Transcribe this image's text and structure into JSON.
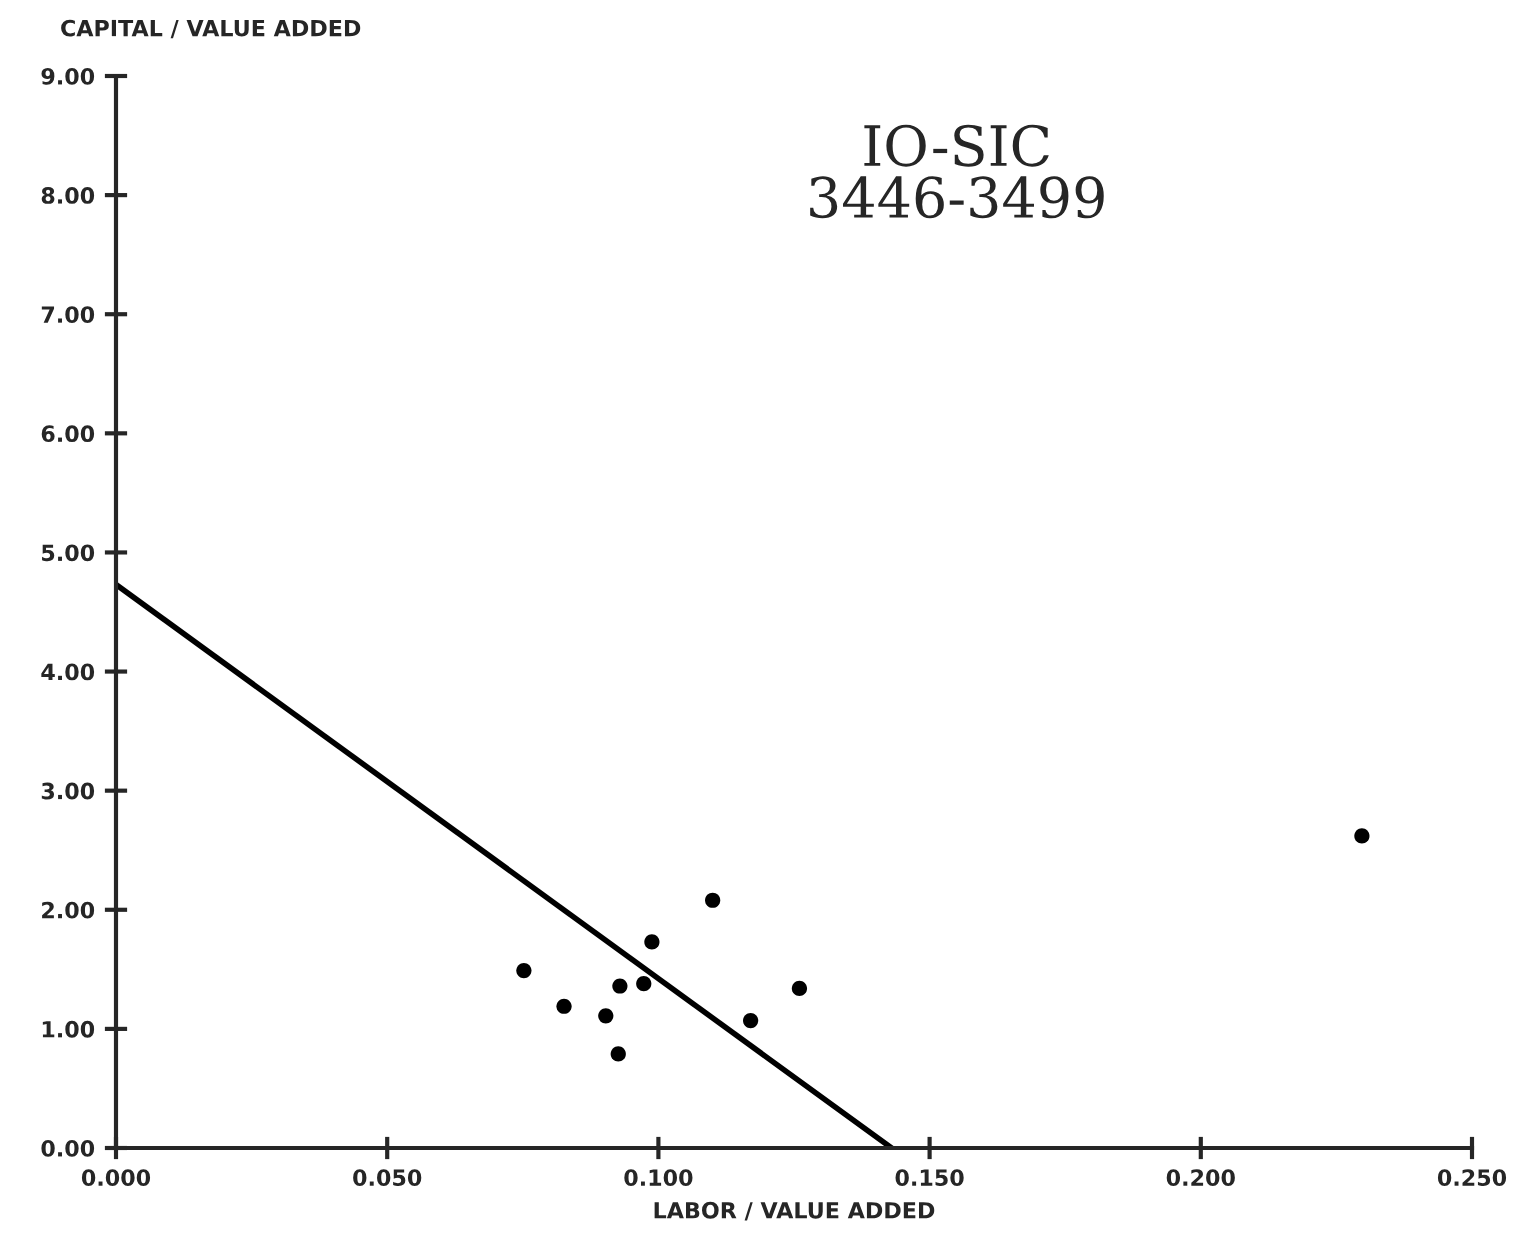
{
  "chart_data": {
    "type": "scatter",
    "title": "IO-SIC\n3446-3499",
    "xlabel": "LABOR / VALUE ADDED",
    "ylabel": "CAPITAL / VALUE ADDED",
    "series": [
      {
        "color": "#000000",
        "marker": "circle",
        "x": [
          0.11,
          0.0988,
          0.0752,
          0.0929,
          0.0973,
          0.0826,
          0.0903,
          0.126,
          0.117,
          0.0926,
          0.2297
        ],
        "values": [
          2.08,
          1.73,
          1.49,
          1.36,
          1.38,
          1.19,
          1.11,
          1.34,
          1.07,
          0.79,
          2.62
        ]
      },
      {
        "type": "line",
        "color": "#000000",
        "marker": "none",
        "line_style": "solid",
        "x": [
          0,
          0.143
        ],
        "values": [
          4.73,
          0
        ]
      }
    ],
    "xlim": [
      0,
      0.25
    ],
    "ylim": [
      0,
      9
    ],
    "xticks": [
      {
        "value": 0,
        "label": "0.000"
      },
      {
        "value": 0.05,
        "label": "0.050"
      },
      {
        "value": 0.1,
        "label": "0.100"
      },
      {
        "value": 0.15,
        "label": "0.150"
      },
      {
        "value": 0.2,
        "label": "0.200"
      },
      {
        "value": 0.25,
        "label": "0.250"
      }
    ],
    "yticks": [
      {
        "value": 0,
        "label": "0.00"
      },
      {
        "value": 1,
        "label": "1.00"
      },
      {
        "value": 2,
        "label": "2.00"
      },
      {
        "value": 3,
        "label": "3.00"
      },
      {
        "value": 4,
        "label": "4.00"
      },
      {
        "value": 5,
        "label": "5.00"
      },
      {
        "value": 6,
        "label": "6.00"
      },
      {
        "value": 7,
        "label": "7.00"
      },
      {
        "value": 8,
        "label": "8.00"
      },
      {
        "value": 9,
        "label": "9.00"
      }
    ],
    "grid": false,
    "legend": false
  }
}
